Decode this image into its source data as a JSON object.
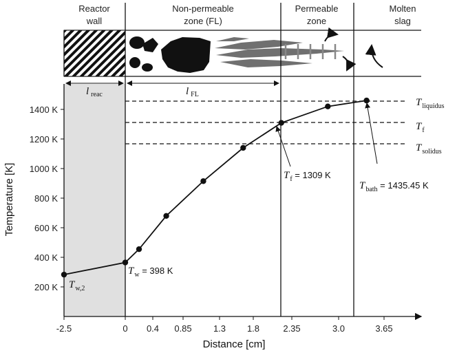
{
  "zones": {
    "reactor_wall": [
      "Reactor",
      "wall"
    ],
    "nonpermeable": [
      "Non-permeable",
      "zone (FL)"
    ],
    "permeable": [
      "Permeable",
      "zone"
    ],
    "molten_slag": [
      "Molten",
      "slag"
    ]
  },
  "dimensions": {
    "l_reac": {
      "symbol": "l",
      "sub": "reac"
    },
    "l_fl": {
      "symbol": "l",
      "sub": "FL"
    }
  },
  "axes": {
    "ylabel": "Temperature [K]",
    "xlabel": "Distance [cm]",
    "y_ticks": [
      "200 K",
      "400 K",
      "600 K",
      "800 K",
      "1000 K",
      "1200 K",
      "1400 K"
    ],
    "x_ticks": [
      "-2.5",
      "0",
      "0.4",
      "0.85",
      "1.3",
      "1.8",
      "2.35",
      "3.0",
      "3.65"
    ]
  },
  "chart_data": {
    "type": "line",
    "xlabel": "Distance [cm]",
    "ylabel": "Temperature [K]",
    "ylim": [
      100,
      1550
    ],
    "y_ticks": [
      200,
      400,
      600,
      800,
      1000,
      1200,
      1400
    ],
    "x_ticks": [
      "-2.5",
      "0",
      "0.4",
      "0.85",
      "1.3",
      "1.8",
      "2.35",
      "3.0",
      "3.65"
    ],
    "x_scale": "piecewise (tick labels unevenly spaced)",
    "grid": false,
    "series": [
      {
        "points": [
          {
            "x": -2.5,
            "y": 283
          },
          {
            "x": 0.0,
            "y": 365
          },
          {
            "x": 0.2,
            "y": 455
          },
          {
            "x": 0.6,
            "y": 680
          },
          {
            "x": 1.1,
            "y": 915
          },
          {
            "x": 1.65,
            "y": 1140
          },
          {
            "x": 2.2,
            "y": 1309
          },
          {
            "x": 2.85,
            "y": 1420
          },
          {
            "x": 3.4,
            "y": 1460
          }
        ]
      }
    ],
    "reference_lines": [
      {
        "label_symbol": "T",
        "label_sub": "liquidus",
        "y": 1455
      },
      {
        "label_symbol": "T",
        "label_sub": "f",
        "y": 1309
      },
      {
        "label_symbol": "T",
        "label_sub": "solidus",
        "y": 1160
      }
    ],
    "zone_boundaries_x": [
      0.0,
      2.35,
      3.25
    ],
    "annotations": [
      {
        "symbol": "T",
        "sub": "w,2"
      },
      {
        "symbol": "T",
        "sub": "w",
        "text": " = 398 K"
      },
      {
        "symbol": "T",
        "sub": "f",
        "text": " = 1309 K"
      },
      {
        "symbol": "T",
        "sub": "bath",
        "text": " = 1435.45 K"
      }
    ]
  }
}
